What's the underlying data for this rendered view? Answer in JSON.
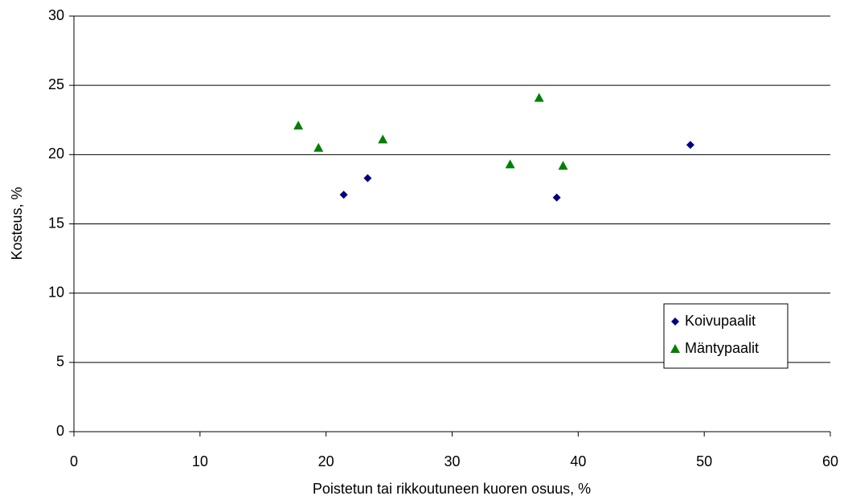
{
  "chart_data": {
    "type": "scatter",
    "xlabel": "Poistetun tai rikkoutuneen kuoren osuus, %",
    "ylabel": "Kosteus, %",
    "xlim": [
      0,
      60
    ],
    "xticks": [
      0,
      10,
      20,
      30,
      40,
      50,
      60
    ],
    "ylim": [
      0,
      30
    ],
    "yticks": [
      0,
      5,
      10,
      15,
      20,
      25,
      30
    ],
    "grid": true,
    "legend": "right",
    "series": [
      {
        "name": "Koivupaalit",
        "color": "#000080",
        "marker": "diamond",
        "x": [
          21.4,
          23.3,
          38.3,
          48.9
        ],
        "values": [
          17.1,
          18.3,
          16.9,
          20.7
        ]
      },
      {
        "name": "Mäntypaalit",
        "color": "#008000",
        "marker": "triangle",
        "x": [
          17.8,
          19.4,
          24.5,
          34.6,
          36.9,
          38.8
        ],
        "values": [
          22.1,
          20.5,
          21.1,
          19.3,
          24.1,
          19.2
        ]
      }
    ]
  }
}
